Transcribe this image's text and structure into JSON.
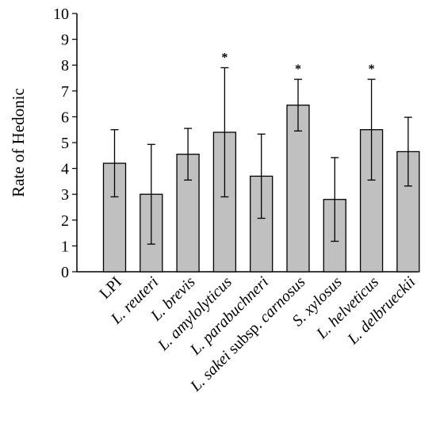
{
  "chart_data": {
    "type": "bar",
    "title": "",
    "xlabel": "",
    "ylabel": "Rate of Hedonic",
    "ylim": [
      0,
      10
    ],
    "yticks": [
      "0",
      "1",
      "2",
      "3",
      "4",
      "5",
      "6",
      "7",
      "8",
      "9",
      "10"
    ],
    "grid": false,
    "bar_color": "#c0c0c0",
    "categories": [
      {
        "normal": "LPI",
        "italic": ""
      },
      {
        "normal": "",
        "italic": "L. reuteri"
      },
      {
        "normal": "",
        "italic": "L. brevis"
      },
      {
        "normal": "",
        "italic": "L. amylolyticus"
      },
      {
        "normal": "",
        "italic": "L. parabuchneri"
      },
      {
        "italic": "L. sakei",
        "normal": " subsp. ",
        "italic2": "carnosus"
      },
      {
        "normal": "",
        "italic": "S. xylosus"
      },
      {
        "normal": "",
        "italic": "L. helveticus"
      },
      {
        "normal": "",
        "italic": "L. delbrueckii"
      }
    ],
    "values": [
      4.2,
      3.0,
      4.55,
      5.4,
      3.7,
      6.45,
      2.8,
      5.5,
      4.65
    ],
    "errors": [
      1.3,
      1.93,
      1.0,
      2.5,
      1.63,
      1.0,
      1.62,
      1.95,
      1.33
    ],
    "annotations": [
      "",
      "",
      "",
      "*",
      "",
      "*",
      "",
      "*",
      ""
    ]
  }
}
